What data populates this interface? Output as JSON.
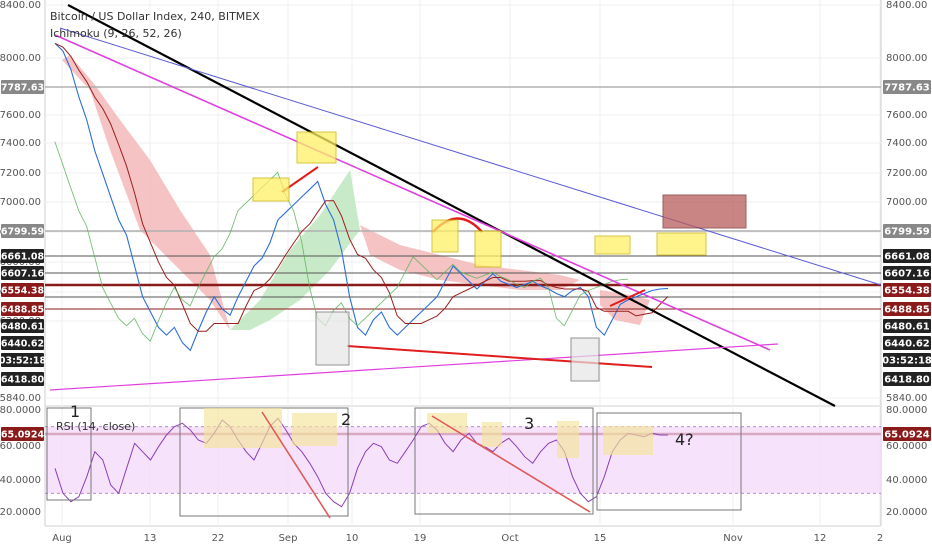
{
  "chart_data": {
    "type": "line",
    "title": "Bitcoin / US Dollar Index, 240, BITMEX",
    "indicator": "Ichimoku (9, 26, 52, 26)",
    "rsi_title": "RSI (14, close)",
    "x_tick_labels": [
      "Aug",
      "13",
      "22",
      "Sep",
      "10",
      "19",
      "Oct",
      "15",
      "Nov",
      "12",
      "2"
    ],
    "y_ticks_left": [
      "8400.00",
      "8000.00",
      "7600.00",
      "7400.00",
      "7200.00",
      "7000.00",
      "6800.00",
      "6600.00",
      "6400.00",
      "6200.00",
      "5840.00"
    ],
    "y_ticks_right": [
      "8400.00",
      "8000.00",
      "7600.00",
      "7400.00",
      "7200.00",
      "7000.00",
      "5840.00"
    ],
    "rsi_ticks_left": [
      "80.0000",
      "60.0000",
      "40.0000",
      "20.0000"
    ],
    "rsi_ticks_right": [
      "80.0000",
      "60.0000",
      "40.0000",
      "20.0000"
    ],
    "price_labels": [
      {
        "text": "7787.63",
        "color": "#888888"
      },
      {
        "text": "6799.59",
        "color": "#888888"
      },
      {
        "text": "6661.08",
        "color": "#222222"
      },
      {
        "text": "6607.16",
        "color": "#222222"
      },
      {
        "text": "6554.38",
        "color": "#8b1a1a"
      },
      {
        "text": "6488.85",
        "color": "#8b1a1a"
      },
      {
        "text": "6480.61",
        "color": "#222222"
      },
      {
        "text": "6440.62",
        "color": "#222222"
      },
      {
        "text": "03:52:18",
        "color": "#222222"
      },
      {
        "text": "6418.80",
        "color": "#222222"
      }
    ],
    "rsi_label": {
      "text": "65.0924",
      "color": "#8b1a1a"
    },
    "annotations": [
      "1",
      "2",
      "3",
      "4?"
    ],
    "series_price": [
      8150,
      8100,
      7980,
      7800,
      7650,
      7450,
      7300,
      7150,
      7000,
      6900,
      6700,
      6500,
      6400,
      6300,
      6250,
      6300,
      6200,
      6150,
      6280,
      6400,
      6500,
      6420,
      6380,
      6500,
      6600,
      6700,
      6750,
      6850,
      7000,
      7050,
      7100,
      7150,
      7200,
      7250,
      7100,
      7000,
      6800,
      6500,
      6300,
      6250,
      6350,
      6400,
      6300,
      6250,
      6300,
      6350,
      6400,
      6450,
      6500,
      6600,
      6700,
      6650,
      6600,
      6550,
      6600,
      6650,
      6600,
      6580,
      6560,
      6580,
      6600,
      6570,
      6550,
      6520,
      6500,
      6540,
      6560,
      6500,
      6300,
      6250,
      6350,
      6450,
      6480,
      6500,
      6520,
      6540,
      6550,
      6554
    ],
    "series_rsi": [
      45,
      30,
      25,
      28,
      40,
      55,
      50,
      35,
      30,
      45,
      60,
      55,
      50,
      58,
      65,
      70,
      72,
      68,
      62,
      60,
      66,
      74,
      70,
      62,
      55,
      50,
      60,
      70,
      75,
      68,
      60,
      55,
      48,
      40,
      30,
      25,
      22,
      30,
      45,
      55,
      60,
      58,
      50,
      48,
      55,
      62,
      70,
      72,
      68,
      60,
      55,
      62,
      66,
      60,
      58,
      55,
      60,
      63,
      58,
      52,
      48,
      55,
      60,
      62,
      55,
      40,
      30,
      25,
      28,
      40,
      55,
      62,
      66,
      65,
      64,
      66,
      65,
      65
    ],
    "colors": {
      "price": "#2b6fd6",
      "kijun": "#9b1f1f",
      "chikou": "#57b057",
      "cloud_red": "#f3b4b4",
      "cloud_green": "#bfe6bf",
      "trend_black": "#000000",
      "trend_magenta": "#e040e0",
      "trend_blue": "#5b5bd6",
      "red_line": "#e01e1e",
      "yellow_box": "#ffef66",
      "rsi_line": "#8a3fb5",
      "rsi_fill": "#f3d9f9"
    }
  }
}
